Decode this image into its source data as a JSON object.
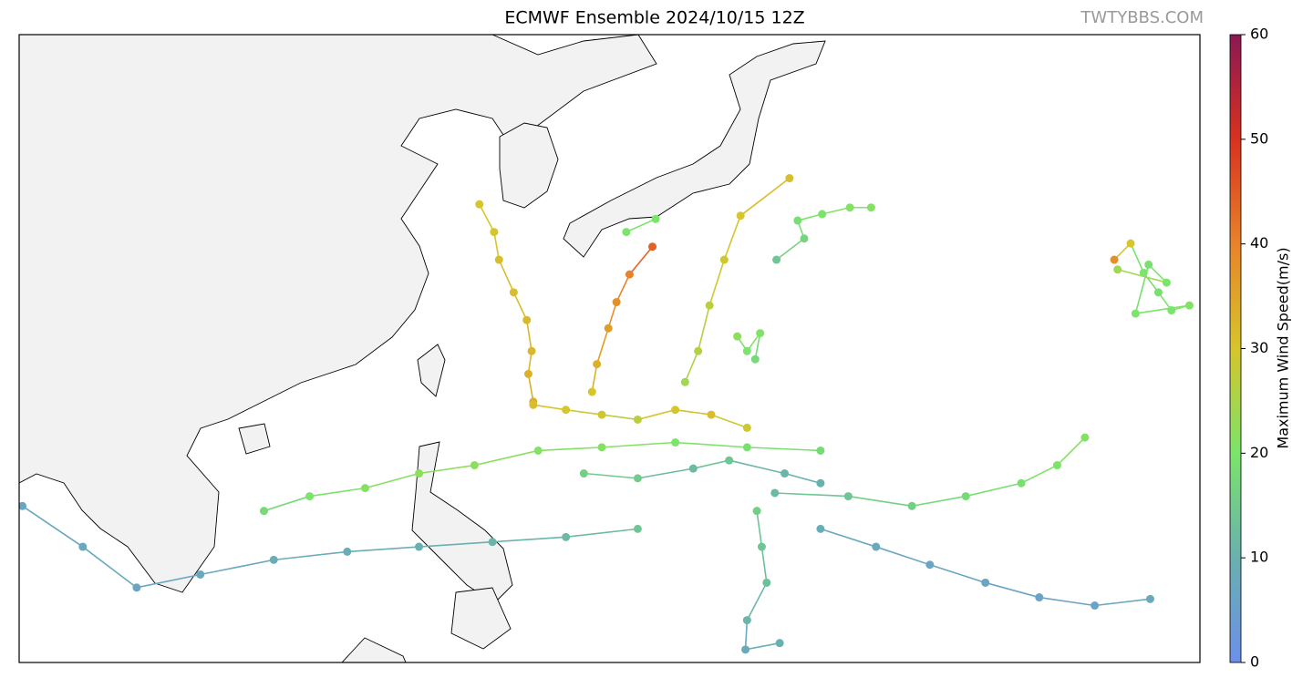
{
  "chart_data": {
    "type": "track-map",
    "title": "ECMWF Ensemble 2024/10/15 12Z",
    "watermark": "TWTYBBS.COM",
    "colorbar": {
      "label": "Maximum Wind Speed(m/s)",
      "lim": [
        0,
        60
      ],
      "ticks": [
        0,
        10,
        20,
        30,
        40,
        50,
        60
      ],
      "colormap": [
        "#6d8fea",
        "#69b0b0",
        "#7be46a",
        "#d6c52b",
        "#e8832a",
        "#d8321f",
        "#8b1854"
      ]
    },
    "tracks": [
      {
        "points": [
          [
            127.5,
            21.5,
            33
          ],
          [
            127.2,
            23.2,
            33
          ],
          [
            127.4,
            24.6,
            32
          ],
          [
            127.1,
            26.5,
            32
          ],
          [
            126.3,
            28.2,
            31
          ],
          [
            125.4,
            30.2,
            31
          ],
          [
            125.1,
            31.9,
            30
          ],
          [
            124.2,
            33.6,
            30
          ]
        ]
      },
      {
        "points": [
          [
            131.1,
            22.1,
            30
          ],
          [
            131.4,
            23.8,
            33
          ],
          [
            132.1,
            26.0,
            36
          ],
          [
            132.6,
            27.6,
            38
          ],
          [
            133.4,
            29.3,
            40
          ],
          [
            134.8,
            31.0,
            44
          ]
        ]
      },
      {
        "points": [
          [
            136.8,
            22.7,
            24
          ],
          [
            137.6,
            24.6,
            26
          ],
          [
            138.3,
            27.4,
            27
          ],
          [
            139.2,
            30.2,
            29
          ],
          [
            140.2,
            32.9,
            30
          ],
          [
            143.2,
            35.2,
            31
          ]
        ]
      },
      {
        "points": [
          [
            142.4,
            30.2,
            14
          ],
          [
            144.1,
            31.5,
            17
          ],
          [
            143.7,
            32.6,
            19
          ],
          [
            145.2,
            33.0,
            20
          ],
          [
            146.9,
            33.4,
            21
          ],
          [
            148.2,
            33.4,
            21
          ]
        ]
      },
      {
        "points": [
          [
            133.2,
            31.9,
            20
          ],
          [
            135.0,
            32.7,
            20
          ]
        ]
      },
      {
        "points": [
          [
            163.1,
            30.2,
            38
          ],
          [
            164.1,
            31.2,
            30
          ],
          [
            164.9,
            29.4,
            20
          ],
          [
            165.8,
            28.2,
            19
          ],
          [
            166.6,
            27.1,
            20
          ],
          [
            167.7,
            27.4,
            21
          ],
          [
            164.4,
            26.9,
            20
          ],
          [
            165.2,
            29.9,
            19
          ],
          [
            166.3,
            28.8,
            20
          ],
          [
            163.3,
            29.6,
            24
          ]
        ]
      },
      {
        "points": [
          [
            145.1,
            18.5,
            18
          ],
          [
            140.6,
            18.7,
            19
          ],
          [
            136.2,
            19.0,
            20
          ],
          [
            131.7,
            18.7,
            21
          ],
          [
            127.8,
            18.5,
            21
          ],
          [
            123.9,
            17.6,
            22
          ],
          [
            120.5,
            17.1,
            22
          ],
          [
            117.2,
            16.2,
            21
          ],
          [
            113.8,
            15.7,
            20
          ],
          [
            111.0,
            14.8,
            18
          ]
        ]
      },
      {
        "points": [
          [
            133.9,
            13.7,
            14
          ],
          [
            129.5,
            13.2,
            12
          ],
          [
            125.0,
            12.9,
            11
          ],
          [
            120.5,
            12.6,
            10
          ],
          [
            116.1,
            12.3,
            9
          ],
          [
            111.6,
            11.8,
            9
          ],
          [
            107.1,
            10.9,
            8
          ],
          [
            103.2,
            10.1,
            7
          ],
          [
            99.9,
            12.6,
            8
          ],
          [
            96.2,
            15.1,
            7
          ]
        ]
      },
      {
        "points": [
          [
            142.3,
            15.9,
            12
          ],
          [
            146.8,
            15.7,
            14
          ],
          [
            150.7,
            15.1,
            16
          ],
          [
            154.0,
            15.7,
            18
          ],
          [
            157.4,
            16.5,
            19
          ],
          [
            159.6,
            17.6,
            20
          ],
          [
            161.3,
            19.3,
            21
          ]
        ]
      },
      {
        "points": [
          [
            145.1,
            13.7,
            9
          ],
          [
            148.5,
            12.6,
            8
          ],
          [
            151.8,
            11.5,
            7
          ],
          [
            155.2,
            10.4,
            7
          ],
          [
            158.5,
            9.5,
            6
          ],
          [
            161.9,
            9.0,
            6
          ],
          [
            165.3,
            9.4,
            8
          ]
        ]
      },
      {
        "points": [
          [
            141.2,
            14.8,
            16
          ],
          [
            141.5,
            12.6,
            14
          ],
          [
            141.8,
            10.4,
            13
          ],
          [
            140.6,
            8.1,
            11
          ],
          [
            140.5,
            6.3,
            8
          ],
          [
            142.6,
            6.7,
            10
          ]
        ]
      },
      {
        "points": [
          [
            127.5,
            21.3,
            31
          ],
          [
            129.5,
            21.0,
            30
          ],
          [
            131.7,
            20.7,
            29
          ],
          [
            133.9,
            20.4,
            27
          ],
          [
            136.2,
            21.0,
            30
          ],
          [
            138.4,
            20.7,
            31
          ],
          [
            140.6,
            19.9,
            29
          ]
        ]
      },
      {
        "points": [
          [
            130.6,
            17.1,
            16
          ],
          [
            133.9,
            16.8,
            15
          ],
          [
            137.3,
            17.4,
            12
          ],
          [
            139.5,
            17.9,
            14
          ],
          [
            142.9,
            17.1,
            11
          ],
          [
            145.1,
            16.5,
            10
          ]
        ]
      },
      {
        "points": [
          [
            140.0,
            25.5,
            22
          ],
          [
            140.6,
            24.6,
            20
          ],
          [
            141.4,
            25.7,
            21
          ],
          [
            141.1,
            24.1,
            18
          ]
        ]
      }
    ]
  }
}
